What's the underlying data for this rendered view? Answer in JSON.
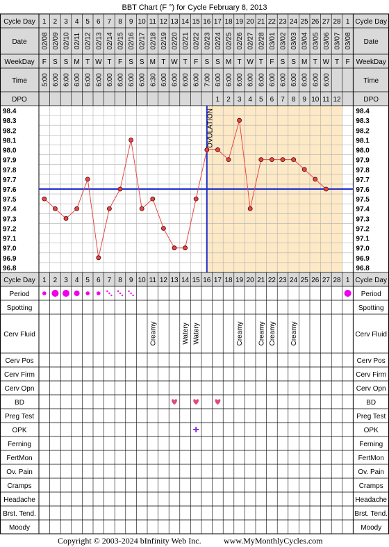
{
  "title": "BBT Chart (F °) for Cycle February 8, 2013",
  "labels": {
    "cycle_day": "Cycle Day",
    "date": "Date",
    "weekday": "WeekDay",
    "time": "Time",
    "dpo": "DPO",
    "period": "Period",
    "spotting": "Spotting",
    "cerv_fluid": "Cerv Fluid",
    "cerv_pos": "Cerv Pos",
    "cerv_firm": "Cerv Firm",
    "cerv_opn": "Cerv Opn",
    "bd": "BD",
    "preg_test": "Preg Test",
    "opk": "OPK",
    "ferning": "Ferning",
    "fertmon": "FertMon",
    "ov_pain": "Ov. Pain",
    "cramps": "Cramps",
    "headache": "Headache",
    "brst_tend": "Brst. Tend.",
    "moody": "Moody"
  },
  "ovulation_label": "OVULATION",
  "footer": {
    "copyright": "Copyright © 2003-2024 bInfinity Web Inc.",
    "site": "www.MyMonthlyCycles.com"
  },
  "colors": {
    "temp_line": "#e84848",
    "coverline": "#1f2fcc",
    "ovulation_line": "#1f2fcc",
    "luteal_fill": "#fde9c6",
    "header_fill": "#d9d9d9",
    "period": "#ee00ee",
    "bd_heart": "#e0487f",
    "opk_plus": "#8a2be2"
  },
  "days": {
    "cycle_day": [
      "1",
      "2",
      "3",
      "4",
      "5",
      "6",
      "7",
      "8",
      "9",
      "10",
      "11",
      "12",
      "13",
      "14",
      "15",
      "16",
      "17",
      "18",
      "19",
      "20",
      "21",
      "22",
      "23",
      "24",
      "25",
      "26",
      "27",
      "28",
      "1"
    ],
    "date": [
      "02/08",
      "02/09",
      "02/10",
      "02/11",
      "02/12",
      "02/13",
      "02/14",
      "02/15",
      "02/16",
      "02/17",
      "02/18",
      "02/19",
      "02/20",
      "02/21",
      "02/22",
      "02/23",
      "02/24",
      "02/25",
      "02/26",
      "02/27",
      "02/28",
      "03/01",
      "03/02",
      "03/03",
      "03/04",
      "03/05",
      "03/06",
      "03/07",
      "03/08"
    ],
    "weekday": [
      "F",
      "S",
      "S",
      "M",
      "T",
      "W",
      "T",
      "F",
      "S",
      "S",
      "M",
      "T",
      "W",
      "T",
      "F",
      "S",
      "S",
      "M",
      "T",
      "W",
      "T",
      "F",
      "S",
      "S",
      "M",
      "T",
      "W",
      "T",
      "F"
    ],
    "time": [
      "5:00",
      "6:00",
      "6:00",
      "6:00",
      "6:00",
      "6:00",
      "6:00",
      "6:00",
      "6:00",
      "6:00",
      "6:30",
      "6:00",
      "6:00",
      "6:00",
      "6:00",
      "7:00",
      "6:00",
      "6:00",
      "6:00",
      "6:00",
      "6:00",
      "6:00",
      "6:00",
      "6:00",
      "6:00",
      "6:00",
      "6:00",
      "",
      ""
    ],
    "dpo": [
      "",
      "",
      "",
      "",
      "",
      "",
      "",
      "",
      "",
      "",
      "",
      "",
      "",
      "",
      "",
      "",
      "1",
      "2",
      "3",
      "4",
      "5",
      "6",
      "7",
      "8",
      "9",
      "10",
      "11",
      "12",
      ""
    ],
    "cerv_fluid": [
      "",
      "",
      "",
      "",
      "",
      "",
      "",
      "",
      "",
      "",
      "Creamy",
      "",
      "",
      "Watery",
      "Watery",
      "",
      "",
      "",
      "Creamy",
      "",
      "Creamy",
      "Creamy",
      "",
      "Creamy",
      "",
      "",
      "",
      "",
      ""
    ],
    "period": [
      "light",
      "heavy",
      "heavy",
      "medium",
      "light",
      "light",
      "spotting",
      "spotting",
      "spotting",
      "",
      "",
      "",
      "",
      "",
      "",
      "",
      "",
      "",
      "",
      "",
      "",
      "",
      "",
      "",
      "",
      "",
      "",
      "",
      "heavy"
    ],
    "bd": [
      13,
      15,
      17
    ],
    "opk_positive": [
      15
    ]
  },
  "chart_data": {
    "type": "line",
    "title": "BBT Chart (F °) for Cycle February 8, 2013",
    "x": [
      1,
      2,
      3,
      4,
      5,
      6,
      7,
      8,
      9,
      10,
      11,
      12,
      13,
      14,
      15,
      16,
      17,
      18,
      19,
      20,
      21,
      22,
      23,
      24,
      25,
      26,
      27
    ],
    "series": [
      {
        "values": [
          97.5,
          97.4,
          97.3,
          97.4,
          97.7,
          96.9,
          97.4,
          97.6,
          98.1,
          97.4,
          97.5,
          97.2,
          97.0,
          97.0,
          97.5,
          98.0,
          98.0,
          97.9,
          98.3,
          97.4,
          97.9,
          97.9,
          97.9,
          97.9,
          97.8,
          97.7,
          97.6
        ]
      }
    ],
    "y_ticks": [
      "98.4",
      "98.3",
      "98.2",
      "98.1",
      "98.0",
      "97.9",
      "97.8",
      "97.7",
      "97.6",
      "97.5",
      "97.4",
      "97.3",
      "97.2",
      "97.1",
      "97.0",
      "96.9",
      "96.8"
    ],
    "ylim": [
      96.8,
      98.4
    ],
    "coverline": 97.6,
    "ovulation_day": 16,
    "grid": true
  }
}
